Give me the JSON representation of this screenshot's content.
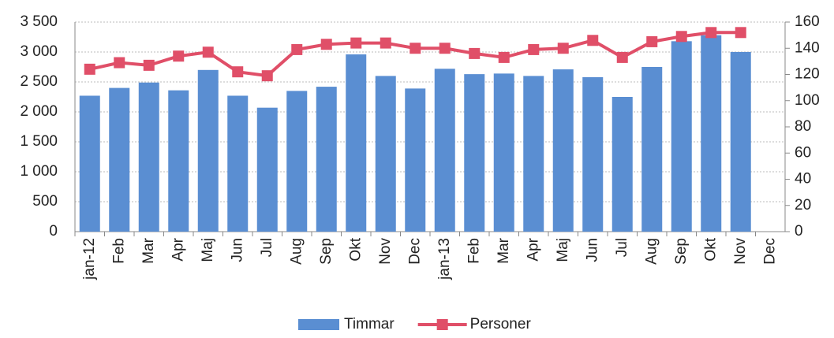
{
  "chart_data": {
    "type": "bar_line",
    "categories": [
      "jan-12",
      "Feb",
      "Mar",
      "Apr",
      "Maj",
      "Jun",
      "Jul",
      "Aug",
      "Sep",
      "Okt",
      "Nov",
      "Dec",
      "jan-13",
      "Feb",
      "Mar",
      "Apr",
      "Maj",
      "Jun",
      "Jul",
      "Aug",
      "Sep",
      "Okt",
      "Nov",
      "Dec"
    ],
    "series": [
      {
        "name": "Timmar",
        "type": "bar",
        "color": "#5a8ed2",
        "values": [
          2270,
          2400,
          2490,
          2360,
          2700,
          2270,
          2070,
          2350,
          2420,
          2960,
          2600,
          2390,
          2720,
          2630,
          2640,
          2600,
          2710,
          2580,
          2250,
          2750,
          3180,
          3280,
          3000,
          null
        ]
      },
      {
        "name": "Personer",
        "type": "line",
        "axis": "y2",
        "color": "#e04f68",
        "values": [
          124,
          129,
          127,
          134,
          137,
          122,
          119,
          139,
          143,
          144,
          144,
          140,
          140,
          136,
          133,
          139,
          140,
          146,
          133,
          145,
          149,
          152,
          152,
          null
        ]
      }
    ],
    "ylim": [
      0,
      3500
    ],
    "yticks": [
      0,
      500,
      {
        "value": 1000,
        "label": "1 000"
      },
      {
        "value": 1500,
        "label": "1 500"
      },
      {
        "value": 2000,
        "label": "2 000"
      },
      {
        "value": 2500,
        "label": "2 500"
      },
      {
        "value": 3000,
        "label": "3 000"
      },
      {
        "value": 3500,
        "label": "3 500"
      }
    ],
    "y2lim": [
      0,
      160
    ],
    "y2ticks": [
      0,
      20,
      40,
      60,
      80,
      100,
      120,
      140,
      160
    ],
    "grid": true,
    "legend": "bottom"
  }
}
